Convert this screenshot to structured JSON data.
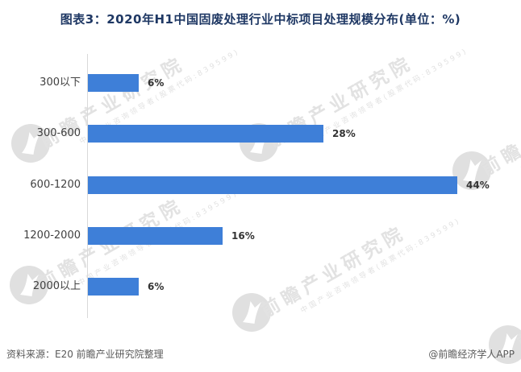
{
  "title": "图表3：2020年H1中国固废处理行业中标项目处理规模分布(单位：%)",
  "chart_data": {
    "type": "bar",
    "orientation": "horizontal",
    "title": "图表3：2020年H1中国固废处理行业中标项目处理规模分布(单位：%)",
    "categories": [
      "300以下",
      "300-600",
      "600-1200",
      "1200-2000",
      "2000以上"
    ],
    "values": [
      6,
      28,
      44,
      16,
      6
    ],
    "value_labels": [
      "6%",
      "28%",
      "44%",
      "16%",
      "6%"
    ],
    "unit": "%",
    "xlim": [
      0,
      50
    ],
    "grid": false,
    "legend": false,
    "bar_color": "#3e7fd8"
  },
  "footer": {
    "source_label": "资料来源：E20 前瞻产业研究院整理",
    "credit_label": "@前瞻经济学人APP"
  },
  "watermark": {
    "brand_text": "前瞻产业研究院",
    "sub_text": "中国产业咨询领导者(股票代码:839599)",
    "color": "#e2e2e2"
  }
}
